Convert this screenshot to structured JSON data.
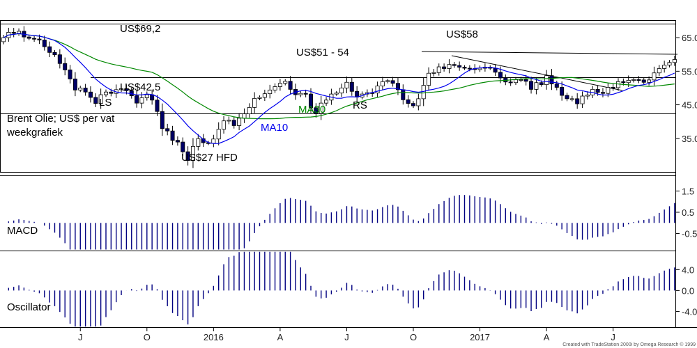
{
  "chart_data": [
    {
      "type": "candlestick",
      "panel": "price",
      "title": "",
      "annotations": {
        "desc_line1": "Brent Olie; US$ per vat",
        "desc_line2": "weekgrafiek",
        "peak": "US$69,2",
        "ls": "LS",
        "neckline_low": "US$42,5",
        "low": "US$27 HFD",
        "ma10": "MA10",
        "ma30": "MA30",
        "rs": "RS",
        "range": "US$51 - 54",
        "peak2": "US$58"
      },
      "y_ticks": [
        "65.0",
        "55.0",
        "45.0",
        "35.0"
      ],
      "y_tick_values": [
        65,
        55,
        45,
        35
      ],
      "ylim": [
        25,
        70
      ],
      "horizontal_levels": [
        69.2,
        53.2,
        42.5
      ],
      "close": [
        65,
        66.6,
        66.3,
        66.9,
        65.2,
        64.8,
        64.6,
        64.3,
        62.3,
        60.6,
        59.9,
        57.3,
        55.4,
        52.7,
        49.4,
        50,
        48.8,
        47.2,
        45.4,
        48,
        48.8,
        48.4,
        49.5,
        49.8,
        49.2,
        47.7,
        45.5,
        47.1,
        48,
        46.4,
        43,
        37.9,
        37.2,
        34.4,
        33.9,
        31,
        28.4,
        32.6,
        34.9,
        33.7,
        33.5,
        34.8,
        37.7,
        40.2,
        40.4,
        38.8,
        41,
        42.3,
        44.2,
        46.9,
        47.2,
        48.3,
        49.4,
        50.4,
        51.4,
        52,
        49.6,
        48,
        48.4,
        48.2,
        44.1,
        42.4,
        45.5,
        46.4,
        48.2,
        48.5,
        50,
        51.7,
        49,
        47.3,
        48.2,
        48.6,
        48.5,
        50.6,
        51.9,
        52.2,
        51.4,
        49.5,
        46.5,
        45.4,
        44.7,
        46.8,
        50.8,
        54.4,
        54.6,
        56.3,
        55.8,
        57,
        56.7,
        56.2,
        55.9,
        55.8,
        55.5,
        55.9,
        56.2,
        55.9,
        54.7,
        53,
        51.8,
        51.6,
        52.5,
        52.5,
        52,
        49.6,
        51.6,
        51,
        53.7,
        51.2,
        50.2,
        47.8,
        46.8,
        46.8,
        45.3,
        47.6,
        47.9,
        49.6,
        48.7,
        48.4,
        50.2,
        50.1,
        51.9,
        51.6,
        52.3,
        52.5,
        52.4,
        51.7,
        52.4,
        54.5,
        55.8,
        56.8,
        57.6,
        58.5
      ],
      "series": [
        {
          "name": "MA10",
          "color": "#0000ee"
        },
        {
          "name": "MA30",
          "color": "#008800"
        }
      ],
      "channel": [
        [
          605,
          74,
          972,
          78
        ],
        [
          648,
          80,
          893,
          130
        ]
      ]
    },
    {
      "type": "bar",
      "panel": "MACD",
      "label": "MACD",
      "y_ticks": [
        "1.5",
        "0.5",
        "-0.5"
      ],
      "y_tick_values": [
        1.5,
        0.5,
        -0.5
      ],
      "ylim": [
        -1.3,
        2.2
      ]
    },
    {
      "type": "bar",
      "panel": "oscillator",
      "label": "Oscillator",
      "y_ticks": [
        "4.0",
        "0.0",
        "-4.0"
      ],
      "y_tick_values": [
        4,
        0,
        -4
      ],
      "ylim": [
        -7,
        7.5
      ]
    }
  ],
  "x_axis": {
    "labels": [
      {
        "text": "J",
        "week": 15
      },
      {
        "text": "O",
        "week": 28
      },
      {
        "text": "2016",
        "week": 41
      },
      {
        "text": "A",
        "week": 54
      },
      {
        "text": "J",
        "week": 67
      },
      {
        "text": "O",
        "week": 80
      },
      {
        "text": "2017",
        "week": 93
      },
      {
        "text": "A",
        "week": 106
      },
      {
        "text": "J",
        "week": 119
      }
    ]
  },
  "credit": "Created with TradeStation 2000i by Omega Research © 1999"
}
